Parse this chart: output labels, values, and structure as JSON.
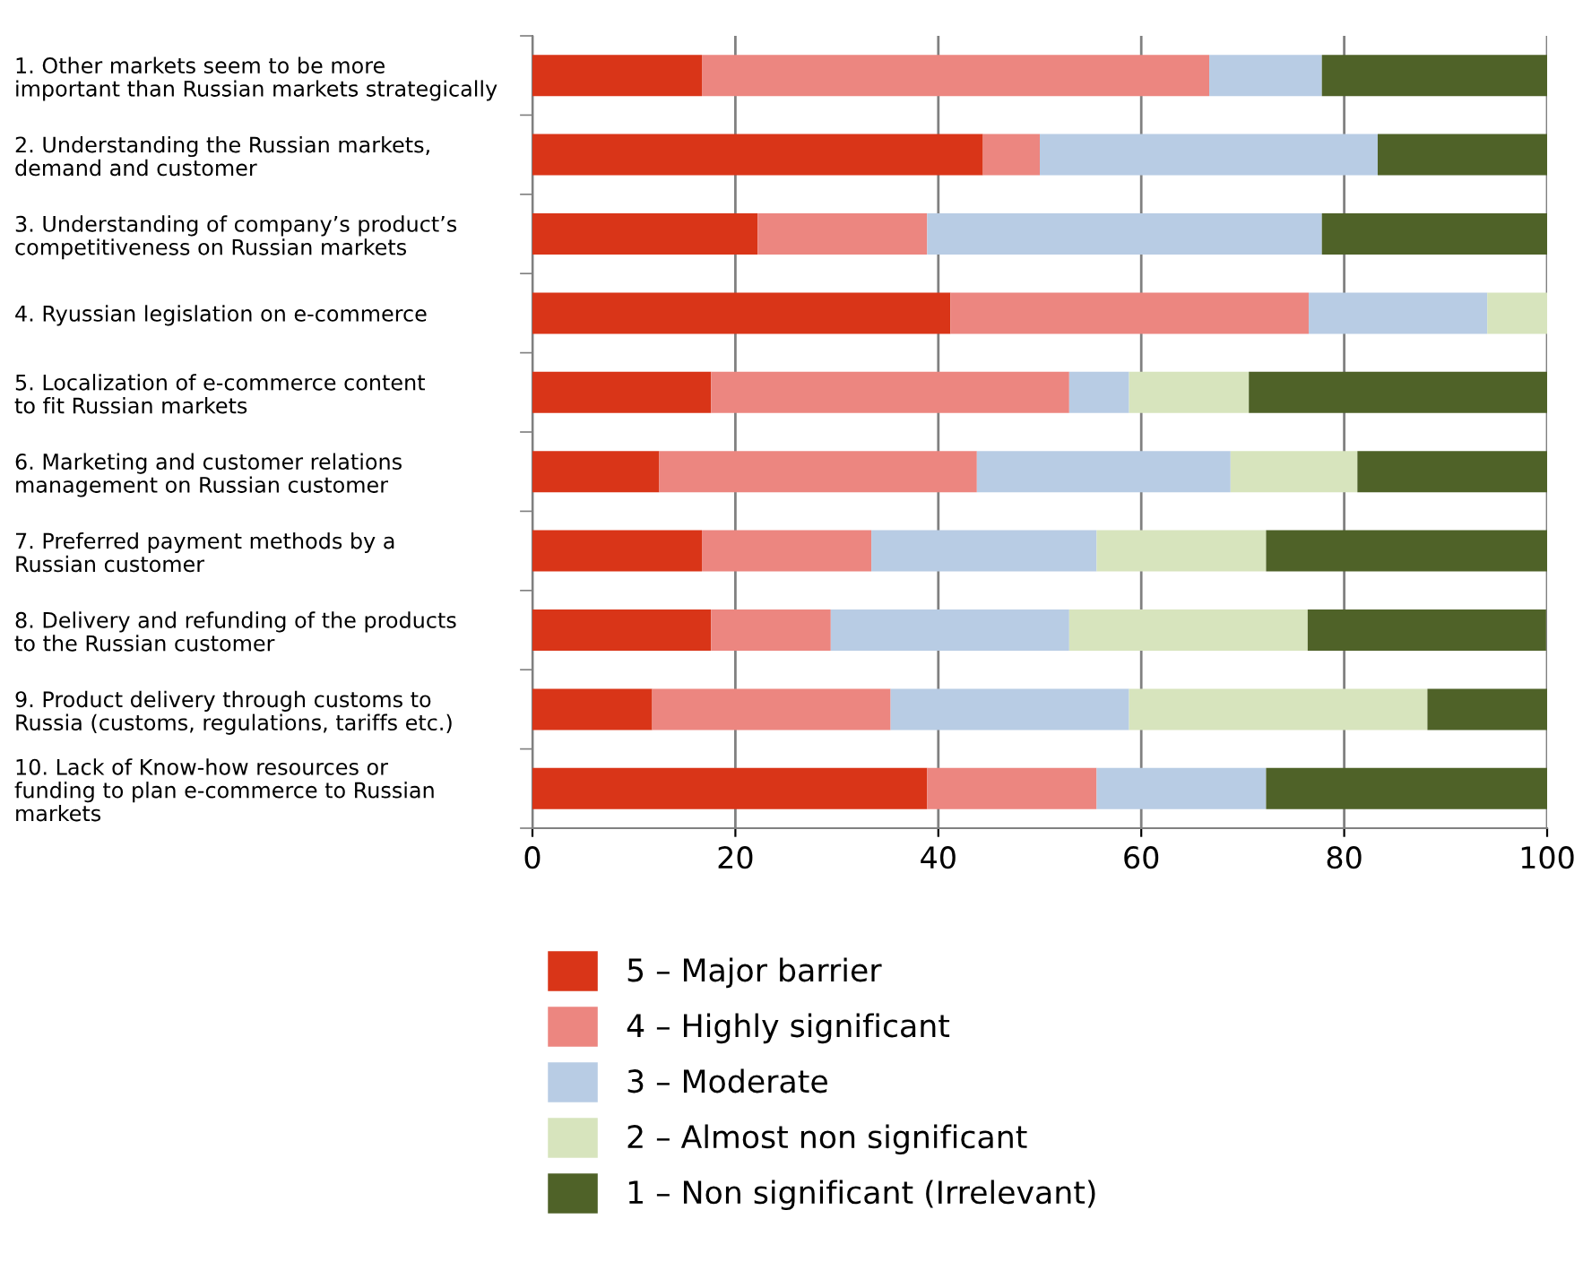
{
  "chart_data": {
    "type": "bar",
    "orientation": "horizontal",
    "stacked": true,
    "categories": [
      "1. Other markets seem to be more\nimportant than Russian markets strategically",
      "2. Understanding the Russian markets,\ndemand and customer",
      "3. Understanding of company’s product’s\ncompetitiveness on Russian markets",
      "4. Ryussian legislation on e-commerce",
      "5. Localization of e-commerce content\nto fit Russian markets",
      "6. Marketing and customer relations\nmanagement on Russian customer",
      "7. Preferred payment methods by a\nRussian customer",
      "8. Delivery and refunding of the products\nto the Russian customer",
      "9. Product delivery through customs to\nRussia (customs, regulations, tariffs etc.)",
      "10. Lack of Know-how resources or\nfunding to plan e-commerce to Russian\nmarkets"
    ],
    "series": [
      {
        "name": "5 – Major barrier",
        "color": "#d93518",
        "values": [
          16.7,
          44.4,
          22.2,
          41.2,
          17.6,
          12.5,
          16.7,
          17.6,
          11.8,
          38.9
        ]
      },
      {
        "name": "4 – Highly significant",
        "color": "#ec8680",
        "values": [
          50.0,
          5.6,
          16.7,
          35.3,
          35.3,
          31.3,
          16.7,
          11.8,
          23.5,
          16.7
        ]
      },
      {
        "name": "3 – Moderate",
        "color": "#b8cce4",
        "values": [
          11.1,
          33.3,
          38.9,
          17.6,
          5.9,
          25.0,
          22.2,
          23.5,
          23.5,
          16.7
        ]
      },
      {
        "name": "2 – Almost non significant",
        "color": "#d7e4bd",
        "values": [
          0,
          0,
          0,
          5.9,
          11.8,
          12.5,
          16.7,
          23.5,
          29.4,
          0
        ]
      },
      {
        "name": "1 – Non significant (Irrelevant)",
        "color": "#4f6228",
        "values": [
          22.2,
          16.7,
          22.2,
          0,
          29.4,
          18.8,
          27.8,
          23.5,
          11.8,
          27.8
        ]
      }
    ],
    "xlim": [
      0,
      100
    ],
    "xticks": [
      0,
      20,
      40,
      60,
      80,
      100
    ],
    "grid": "x",
    "legend": "bottom"
  }
}
